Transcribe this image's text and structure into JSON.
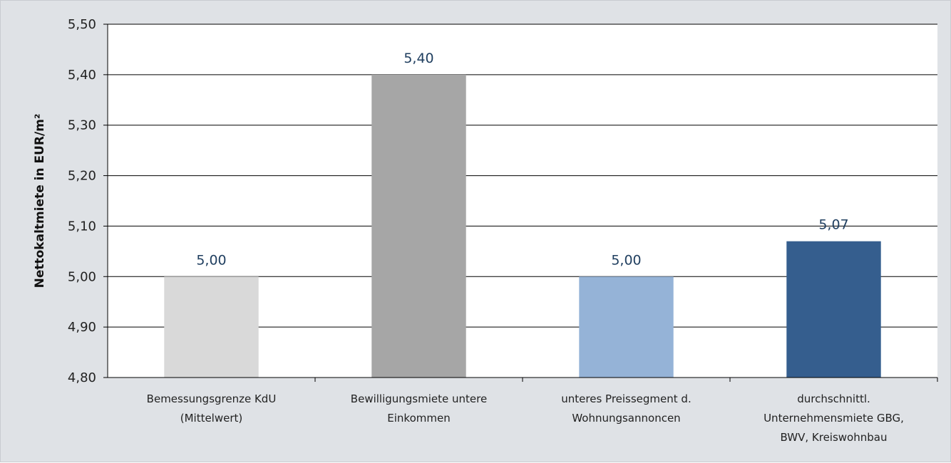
{
  "chart_data": {
    "type": "bar",
    "title": "",
    "ylabel": "Nettokaltmiete in EUR/m²",
    "xlabel": "",
    "ylim": [
      4.8,
      5.5
    ],
    "yticks": [
      4.8,
      4.9,
      5.0,
      5.1,
      5.2,
      5.3,
      5.4,
      5.5
    ],
    "ytick_labels": [
      "4,80",
      "4,90",
      "5,00",
      "5,10",
      "5,20",
      "5,30",
      "5,40",
      "5,50"
    ],
    "grid": true,
    "legend": "none",
    "categories": [
      [
        "Bemessungsgrenze KdU",
        "(Mittelwert)"
      ],
      [
        "Bewilligungsmiete untere",
        "Einkommen"
      ],
      [
        "unteres Preissegment d.",
        "Wohnungsannoncen"
      ],
      [
        "durchschnittl.",
        "Unternehmensmiete GBG,",
        "BWV, Kreiswohnbau"
      ]
    ],
    "values": [
      5.0,
      5.4,
      5.0,
      5.07
    ],
    "value_labels": [
      "5,00",
      "5,40",
      "5,00",
      "5,07"
    ],
    "colors": [
      "#d9d9d9",
      "#a6a6a6",
      "#95b3d7",
      "#355e8e"
    ]
  }
}
